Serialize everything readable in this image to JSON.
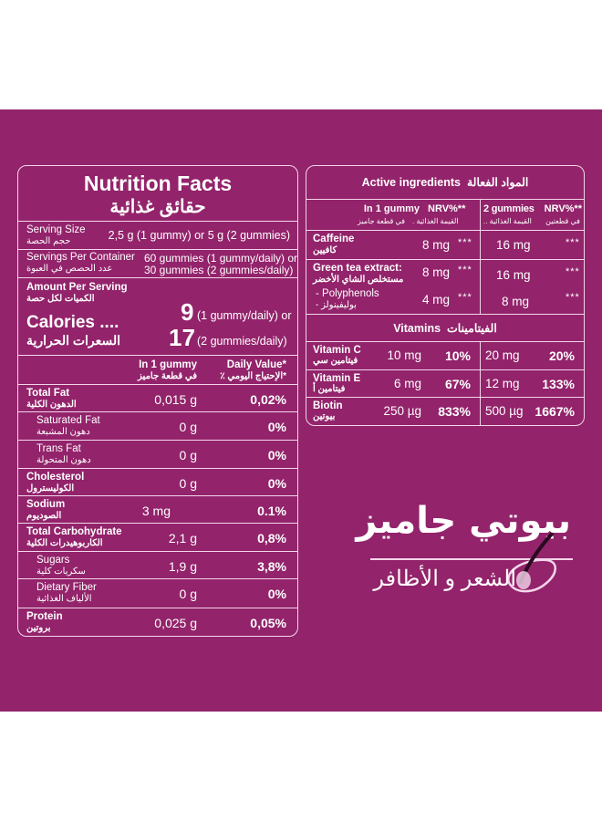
{
  "colors": {
    "background": "#93236b",
    "border": "#f3d6ea",
    "text": "#ffffff"
  },
  "nutrition": {
    "title": "Nutrition Facts",
    "title_ar": "حقائق غذائية",
    "serving_size": {
      "label": "Serving Size",
      "label_ar": "حجم الحصة",
      "value": "2,5 g (1 gummy) or 5 g (2 gummies)"
    },
    "servings_per_container": {
      "label": "Servings Per Container",
      "label_ar": "عدد الحصص في العبوة",
      "value1": "60 gummies (1 gummy/daily) or",
      "value2": "30 gummies (2 gummies/daily)"
    },
    "amount": {
      "label": "Amount Per Serving",
      "label_ar": "الكميات لكل حصة",
      "calories": "Calories ....",
      "calories_ar": "السعرات الحرارية",
      "cal1": "9",
      "cal1_note": "(1 gummy/daily) or",
      "cal2": "17",
      "cal2_note": "(2 gummies/daily)"
    },
    "col1": "In 1 gummy",
    "col1_ar": "في قطعة جاميز",
    "col2": "Daily Value*",
    "col2_ar": "*الإحتياج اليومي ٪",
    "rows": [
      {
        "label": "Total Fat",
        "label_ar": "الدهون الكلية",
        "amount": "0,015 g",
        "dv": "0,02%",
        "bold": true
      },
      {
        "label": "Saturated Fat",
        "label_ar": "دهون المشبعة",
        "amount": "0 g",
        "dv": "0%",
        "bold": false
      },
      {
        "label": "Trans Fat",
        "label_ar": "دهون المتحولة",
        "amount": "0 g",
        "dv": "0%",
        "bold": false
      },
      {
        "label": "Cholesterol",
        "label_ar": "الكوليسترول",
        "amount": "0 g",
        "dv": "0%",
        "bold": true
      },
      {
        "label": "Sodium",
        "label_ar": "الصوديوم",
        "amount": "3 mg",
        "dv": "0.1%",
        "bold": true
      },
      {
        "label": "Total Carbohydrate",
        "label_ar": "الكاربوهيدرات الكلية",
        "amount": "2,1 g",
        "dv": "0,8%",
        "bold": true
      },
      {
        "label": "Sugars",
        "label_ar": "سكريات كلية",
        "amount": "1,9 g",
        "dv": "3,8%",
        "bold": false
      },
      {
        "label": "Dietary Fiber",
        "label_ar": "الألياف الغذائية",
        "amount": "0 g",
        "dv": "0%",
        "bold": false
      },
      {
        "label": "Protein",
        "label_ar": "بروتين",
        "amount": "0,025 g",
        "dv": "0,05%",
        "bold": true
      }
    ]
  },
  "active": {
    "title": "Active ingredients",
    "title_ar": "المواد الفعالة",
    "col1": "In 1 gummy",
    "col1_nrv": "NRV%**",
    "col1_ar": "في قطعة جاميز",
    "col1_nrv_ar": "القيمة الغذائية .",
    "col2": "2 gummies",
    "col2_nrv": "NRV%**",
    "col2_ar": "في قطعتين",
    "col2_nrv_ar": "القيمة الغذائية ..",
    "caffeine": {
      "label": "Caffeine",
      "label_ar": "كافيين",
      "a1": "8 mg",
      "n1": "***",
      "a2": "16 mg",
      "n2": "***"
    },
    "green_tea": {
      "label": "Green tea extract:",
      "label_ar": "مستخلص الشاي الأخضر",
      "a1": "8 mg",
      "n1": "***",
      "a2": "16 mg",
      "n2": "***"
    },
    "polyphenols": {
      "label": "- Polyphenols",
      "label_ar": "بوليفينولز -",
      "a1": "4 mg",
      "n1": "***",
      "a2": "8 mg",
      "n2": "***"
    },
    "vitamins_title": "Vitamins",
    "vitamins_title_ar": "الفيتامينات",
    "vitamins": [
      {
        "label": "Vitamin C",
        "label_ar": "فيتامين سي",
        "a1": "10 mg",
        "p1": "10%",
        "a2": "20 mg",
        "p2": "20%"
      },
      {
        "label": "Vitamin E",
        "label_ar": "فيتامين أ",
        "a1": "6 mg",
        "p1": "67%",
        "a2": "12 mg",
        "p2": "133%"
      },
      {
        "label": "Biotin",
        "label_ar": "بيوتين",
        "a1": "250 µg",
        "p1": "833%",
        "a2": "500 µg",
        "p2": "1667%"
      }
    ]
  },
  "logo": {
    "brand_ar": "بيوتي جاميز",
    "tagline_ar": "الشعر و الأظافر"
  }
}
